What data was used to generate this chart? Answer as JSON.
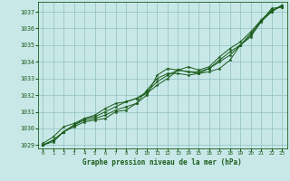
{
  "xlabel": "Graphe pression niveau de la mer (hPa)",
  "ylim": [
    1028.8,
    1037.6
  ],
  "xlim": [
    -0.5,
    23.5
  ],
  "yticks": [
    1029,
    1030,
    1031,
    1032,
    1033,
    1034,
    1035,
    1036,
    1037
  ],
  "xticks": [
    0,
    1,
    2,
    3,
    4,
    5,
    6,
    7,
    8,
    9,
    10,
    11,
    12,
    13,
    14,
    15,
    16,
    17,
    18,
    19,
    20,
    21,
    22,
    23
  ],
  "bg_color": "#c8e8e8",
  "grid_color": "#90bfbf",
  "line_color": "#1a5c1a",
  "series": [
    [
      1029.0,
      1029.2,
      1029.8,
      1030.1,
      1030.4,
      1030.5,
      1030.6,
      1031.0,
      1031.1,
      1031.5,
      1032.0,
      1033.2,
      1033.6,
      1033.5,
      1033.4,
      1033.3,
      1033.4,
      1033.6,
      1034.1,
      1035.0,
      1035.5,
      1036.4,
      1037.2,
      1037.3
    ],
    [
      1029.0,
      1029.3,
      1029.8,
      1030.2,
      1030.5,
      1030.6,
      1030.8,
      1031.1,
      1031.3,
      1031.5,
      1032.3,
      1033.0,
      1033.3,
      1033.3,
      1033.2,
      1033.3,
      1033.6,
      1034.0,
      1034.4,
      1035.0,
      1035.6,
      1036.5,
      1037.1,
      1037.3
    ],
    [
      1029.0,
      1029.3,
      1029.8,
      1030.2,
      1030.6,
      1030.7,
      1031.0,
      1031.3,
      1031.6,
      1031.8,
      1032.2,
      1032.8,
      1033.2,
      1033.5,
      1033.4,
      1033.4,
      1033.6,
      1034.1,
      1034.6,
      1035.0,
      1035.7,
      1036.4,
      1037.0,
      1037.4
    ],
    [
      1029.1,
      1029.5,
      1030.1,
      1030.3,
      1030.6,
      1030.8,
      1031.2,
      1031.5,
      1031.6,
      1031.8,
      1032.1,
      1032.6,
      1033.0,
      1033.5,
      1033.7,
      1033.5,
      1033.7,
      1034.3,
      1034.8,
      1035.2,
      1035.8,
      1036.5,
      1037.0,
      1037.4
    ]
  ]
}
